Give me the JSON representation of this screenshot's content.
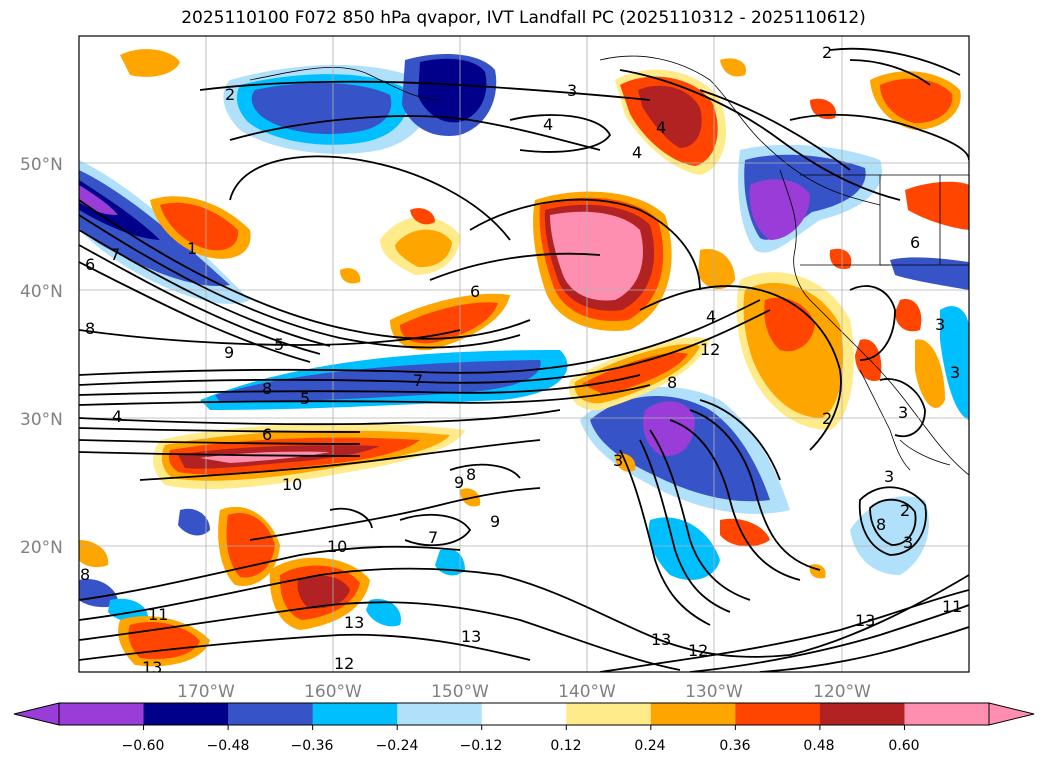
{
  "title": "2025110100 F072 850 hPa qvapor, IVT Landfall PC (2025110312 - 2025110612)",
  "map": {
    "lat_ticks": [
      "50°N",
      "40°N",
      "30°N",
      "20°N"
    ],
    "lon_ticks": [
      "170°W",
      "160°W",
      "150°W",
      "140°W",
      "130°W",
      "120°W"
    ],
    "contour_labels": [
      "2",
      "3",
      "4",
      "4",
      "2",
      "1",
      "6",
      "6",
      "7",
      "8",
      "8",
      "5",
      "9",
      "8",
      "7",
      "5",
      "4",
      "6",
      "10",
      "9",
      "8",
      "9",
      "7",
      "10",
      "12",
      "11",
      "13",
      "13",
      "12",
      "13",
      "13",
      "12",
      "13",
      "11",
      "4",
      "2",
      "3",
      "3",
      "3",
      "3",
      "8",
      "2",
      "3",
      "6",
      "4",
      "3",
      "8"
    ]
  },
  "colorbar": {
    "colors": [
      "#9a3cd8",
      "#00008b",
      "#3753c8",
      "#00bfff",
      "#b0e0fa",
      "#ffffff",
      "#ffeb8a",
      "#ffa500",
      "#ff4500",
      "#b22222",
      "#ff8fb0"
    ],
    "tick_labels": [
      "−0.60",
      "−0.48",
      "−0.36",
      "−0.24",
      "−0.12",
      "0.12",
      "0.24",
      "0.36",
      "0.48",
      "0.60"
    ]
  }
}
